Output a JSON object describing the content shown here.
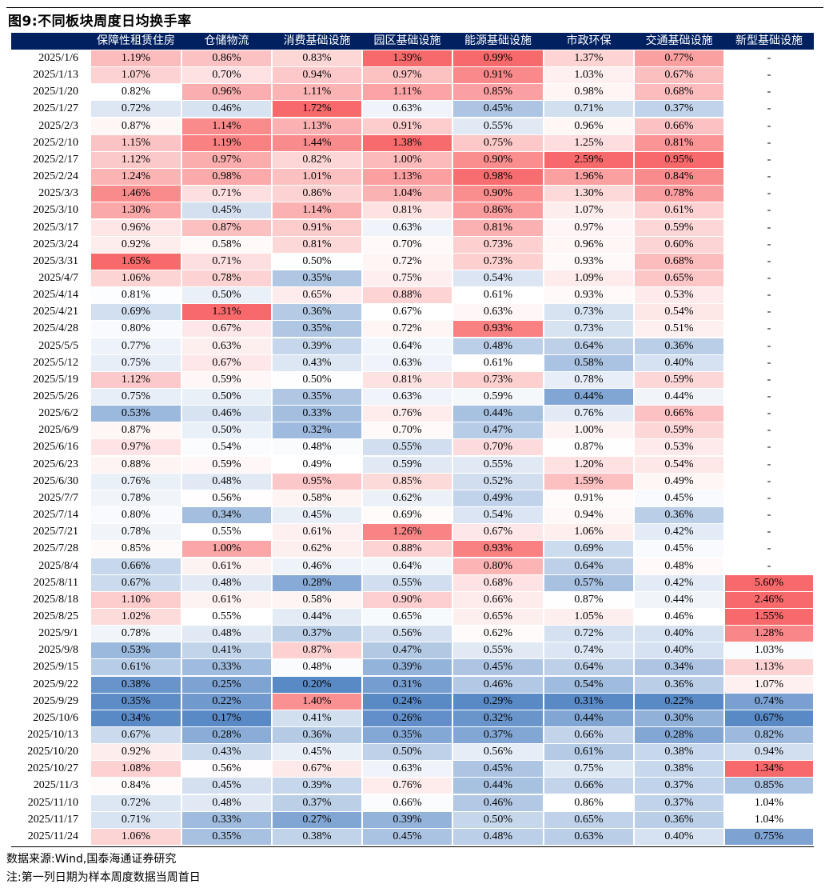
{
  "title": "图9:不同板块周度日均换手率",
  "chart_data": {
    "type": "table",
    "columns": [
      "保障性租赁住房",
      "仓储物流",
      "消费基础设施",
      "园区基础设施",
      "能源基础设施",
      "市政环保",
      "交通基础设施",
      "新型基础设施"
    ],
    "rows": [
      {
        "date": "2025/1/6",
        "values": [
          "1.19%",
          "0.86%",
          "0.83%",
          "1.39%",
          "0.99%",
          "1.37%",
          "0.77%",
          "-"
        ]
      },
      {
        "date": "2025/1/13",
        "values": [
          "1.07%",
          "0.70%",
          "0.94%",
          "0.97%",
          "0.91%",
          "1.03%",
          "0.67%",
          "-"
        ]
      },
      {
        "date": "2025/1/20",
        "values": [
          "0.82%",
          "0.96%",
          "1.11%",
          "1.11%",
          "0.85%",
          "0.98%",
          "0.68%",
          "-"
        ]
      },
      {
        "date": "2025/1/27",
        "values": [
          "0.72%",
          "0.46%",
          "1.72%",
          "0.63%",
          "0.45%",
          "0.71%",
          "0.37%",
          "-"
        ]
      },
      {
        "date": "2025/2/3",
        "values": [
          "0.87%",
          "1.14%",
          "1.13%",
          "0.91%",
          "0.55%",
          "0.96%",
          "0.66%",
          "-"
        ]
      },
      {
        "date": "2025/2/10",
        "values": [
          "1.15%",
          "1.19%",
          "1.44%",
          "1.38%",
          "0.75%",
          "1.25%",
          "0.81%",
          "-"
        ]
      },
      {
        "date": "2025/2/17",
        "values": [
          "1.12%",
          "0.97%",
          "0.82%",
          "1.00%",
          "0.90%",
          "2.59%",
          "0.95%",
          "-"
        ]
      },
      {
        "date": "2025/2/24",
        "values": [
          "1.24%",
          "0.98%",
          "1.01%",
          "1.13%",
          "0.98%",
          "1.96%",
          "0.84%",
          "-"
        ]
      },
      {
        "date": "2025/3/3",
        "values": [
          "1.46%",
          "0.71%",
          "0.86%",
          "1.04%",
          "0.90%",
          "1.30%",
          "0.78%",
          "-"
        ]
      },
      {
        "date": "2025/3/10",
        "values": [
          "1.30%",
          "0.45%",
          "1.14%",
          "0.81%",
          "0.86%",
          "1.07%",
          "0.61%",
          "-"
        ]
      },
      {
        "date": "2025/3/17",
        "values": [
          "0.96%",
          "0.87%",
          "0.91%",
          "0.63%",
          "0.81%",
          "0.97%",
          "0.59%",
          "-"
        ]
      },
      {
        "date": "2025/3/24",
        "values": [
          "0.92%",
          "0.58%",
          "0.81%",
          "0.70%",
          "0.73%",
          "0.96%",
          "0.60%",
          "-"
        ]
      },
      {
        "date": "2025/3/31",
        "values": [
          "1.65%",
          "0.71%",
          "0.50%",
          "0.72%",
          "0.73%",
          "0.93%",
          "0.68%",
          "-"
        ]
      },
      {
        "date": "2025/4/7",
        "values": [
          "1.06%",
          "0.78%",
          "0.35%",
          "0.75%",
          "0.54%",
          "1.09%",
          "0.65%",
          "-"
        ]
      },
      {
        "date": "2025/4/14",
        "values": [
          "0.81%",
          "0.50%",
          "0.65%",
          "0.88%",
          "0.61%",
          "0.93%",
          "0.53%",
          "-"
        ]
      },
      {
        "date": "2025/4/21",
        "values": [
          "0.69%",
          "1.31%",
          "0.36%",
          "0.67%",
          "0.63%",
          "0.73%",
          "0.54%",
          "-"
        ]
      },
      {
        "date": "2025/4/28",
        "values": [
          "0.80%",
          "0.67%",
          "0.35%",
          "0.72%",
          "0.93%",
          "0.73%",
          "0.51%",
          "-"
        ]
      },
      {
        "date": "2025/5/5",
        "values": [
          "0.77%",
          "0.63%",
          "0.39%",
          "0.64%",
          "0.48%",
          "0.64%",
          "0.36%",
          "-"
        ]
      },
      {
        "date": "2025/5/12",
        "values": [
          "0.75%",
          "0.67%",
          "0.43%",
          "0.63%",
          "0.61%",
          "0.58%",
          "0.40%",
          "-"
        ]
      },
      {
        "date": "2025/5/19",
        "values": [
          "1.12%",
          "0.59%",
          "0.50%",
          "0.81%",
          "0.73%",
          "0.78%",
          "0.59%",
          "-"
        ]
      },
      {
        "date": "2025/5/26",
        "values": [
          "0.75%",
          "0.50%",
          "0.35%",
          "0.63%",
          "0.59%",
          "0.44%",
          "0.44%",
          "-"
        ]
      },
      {
        "date": "2025/6/2",
        "values": [
          "0.53%",
          "0.46%",
          "0.33%",
          "0.76%",
          "0.44%",
          "0.76%",
          "0.66%",
          "-"
        ]
      },
      {
        "date": "2025/6/9",
        "values": [
          "0.87%",
          "0.50%",
          "0.32%",
          "0.70%",
          "0.47%",
          "1.00%",
          "0.59%",
          "-"
        ]
      },
      {
        "date": "2025/6/16",
        "values": [
          "0.97%",
          "0.54%",
          "0.48%",
          "0.55%",
          "0.70%",
          "0.87%",
          "0.53%",
          "-"
        ]
      },
      {
        "date": "2025/6/23",
        "values": [
          "0.88%",
          "0.59%",
          "0.49%",
          "0.59%",
          "0.55%",
          "1.20%",
          "0.54%",
          "-"
        ]
      },
      {
        "date": "2025/6/30",
        "values": [
          "0.76%",
          "0.48%",
          "0.95%",
          "0.85%",
          "0.52%",
          "1.59%",
          "0.49%",
          "-"
        ]
      },
      {
        "date": "2025/7/7",
        "values": [
          "0.78%",
          "0.56%",
          "0.58%",
          "0.62%",
          "0.49%",
          "0.91%",
          "0.45%",
          "-"
        ]
      },
      {
        "date": "2025/7/14",
        "values": [
          "0.80%",
          "0.34%",
          "0.45%",
          "0.69%",
          "0.54%",
          "0.94%",
          "0.36%",
          "-"
        ]
      },
      {
        "date": "2025/7/21",
        "values": [
          "0.78%",
          "0.55%",
          "0.61%",
          "1.26%",
          "0.67%",
          "1.06%",
          "0.42%",
          "-"
        ]
      },
      {
        "date": "2025/7/28",
        "values": [
          "0.85%",
          "1.00%",
          "0.62%",
          "0.88%",
          "0.93%",
          "0.69%",
          "0.45%",
          "-"
        ]
      },
      {
        "date": "2025/8/4",
        "values": [
          "0.66%",
          "0.61%",
          "0.46%",
          "0.64%",
          "0.80%",
          "0.64%",
          "0.48%",
          "-"
        ]
      },
      {
        "date": "2025/8/11",
        "values": [
          "0.67%",
          "0.48%",
          "0.28%",
          "0.55%",
          "0.68%",
          "0.57%",
          "0.42%",
          "5.60%"
        ]
      },
      {
        "date": "2025/8/18",
        "values": [
          "1.10%",
          "0.61%",
          "0.58%",
          "0.90%",
          "0.66%",
          "0.87%",
          "0.44%",
          "2.46%"
        ]
      },
      {
        "date": "2025/8/25",
        "values": [
          "1.02%",
          "0.55%",
          "0.44%",
          "0.65%",
          "0.65%",
          "1.05%",
          "0.46%",
          "1.55%"
        ]
      },
      {
        "date": "2025/9/1",
        "values": [
          "0.78%",
          "0.48%",
          "0.37%",
          "0.56%",
          "0.62%",
          "0.72%",
          "0.40%",
          "1.28%"
        ]
      },
      {
        "date": "2025/9/8",
        "values": [
          "0.53%",
          "0.41%",
          "0.87%",
          "0.47%",
          "0.55%",
          "0.74%",
          "0.40%",
          "1.03%"
        ]
      },
      {
        "date": "2025/9/15",
        "values": [
          "0.61%",
          "0.33%",
          "0.48%",
          "0.39%",
          "0.45%",
          "0.64%",
          "0.34%",
          "1.13%"
        ]
      },
      {
        "date": "2025/9/22",
        "values": [
          "0.38%",
          "0.25%",
          "0.20%",
          "0.31%",
          "0.46%",
          "0.54%",
          "0.36%",
          "1.07%"
        ]
      },
      {
        "date": "2025/9/29",
        "values": [
          "0.35%",
          "0.22%",
          "1.40%",
          "0.24%",
          "0.29%",
          "0.31%",
          "0.22%",
          "0.74%"
        ]
      },
      {
        "date": "2025/10/6",
        "values": [
          "0.34%",
          "0.17%",
          "0.41%",
          "0.26%",
          "0.32%",
          "0.44%",
          "0.30%",
          "0.67%"
        ]
      },
      {
        "date": "2025/10/13",
        "values": [
          "0.67%",
          "0.28%",
          "0.36%",
          "0.35%",
          "0.37%",
          "0.66%",
          "0.28%",
          "0.82%"
        ]
      },
      {
        "date": "2025/10/20",
        "values": [
          "0.92%",
          "0.43%",
          "0.45%",
          "0.50%",
          "0.56%",
          "0.61%",
          "0.38%",
          "0.94%"
        ]
      },
      {
        "date": "2025/10/27",
        "values": [
          "1.08%",
          "0.56%",
          "0.67%",
          "0.63%",
          "0.45%",
          "0.75%",
          "0.38%",
          "1.34%"
        ]
      },
      {
        "date": "2025/11/3",
        "values": [
          "0.84%",
          "0.45%",
          "0.39%",
          "0.76%",
          "0.44%",
          "0.66%",
          "0.37%",
          "0.85%"
        ]
      },
      {
        "date": "2025/11/10",
        "values": [
          "0.72%",
          "0.48%",
          "0.37%",
          "0.66%",
          "0.46%",
          "0.86%",
          "0.37%",
          "1.04%"
        ]
      },
      {
        "date": "2025/11/17",
        "values": [
          "0.71%",
          "0.33%",
          "0.27%",
          "0.39%",
          "0.50%",
          "0.65%",
          "0.36%",
          "1.04%"
        ]
      },
      {
        "date": "2025/11/24",
        "values": [
          "1.06%",
          "0.35%",
          "0.38%",
          "0.45%",
          "0.48%",
          "0.63%",
          "0.40%",
          "0.75%"
        ]
      }
    ],
    "colors": {
      "header_bg": "#002060",
      "high": "#f8696b",
      "low": "#5a8ac6",
      "mid": "#ffffff"
    }
  },
  "source": "数据来源:Wind,国泰海通证券研究",
  "note": "注:第一列日期为样本周度数据当周首日"
}
